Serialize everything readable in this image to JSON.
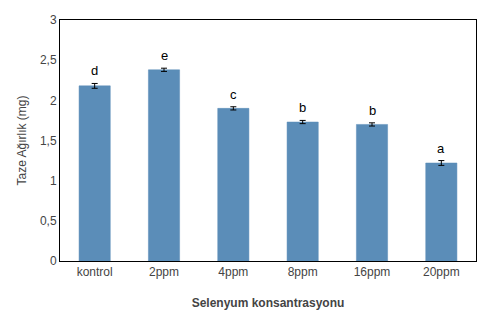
{
  "chart_data": {
    "type": "bar",
    "categories": [
      "kontrol",
      "2ppm",
      "4ppm",
      "8ppm",
      "16ppm",
      "20ppm"
    ],
    "values": [
      2.18,
      2.38,
      1.9,
      1.73,
      1.7,
      1.22
    ],
    "errors": [
      0.03,
      0.02,
      0.02,
      0.02,
      0.02,
      0.03
    ],
    "annotations": [
      {
        "category": "kontrol",
        "text": "d"
      },
      {
        "category": "2ppm",
        "text": "e"
      },
      {
        "category": "4ppm",
        "text": "c"
      },
      {
        "category": "8ppm",
        "text": "b"
      },
      {
        "category": "16ppm",
        "text": "b"
      },
      {
        "category": "20ppm",
        "text": "a"
      }
    ],
    "color": "#5B8DB8",
    "xlabel": "Selenyum konsantrasyonu",
    "ylabel": "Taze Ağırlık (mg)",
    "ylim": [
      0,
      3
    ],
    "yticks": [
      0,
      {
        "value": 0.5,
        "label": "0,5"
      },
      1,
      {
        "value": 1.5,
        "label": "1,5"
      },
      2,
      {
        "value": 2.5,
        "label": "2,5"
      },
      3
    ],
    "grid": false
  }
}
